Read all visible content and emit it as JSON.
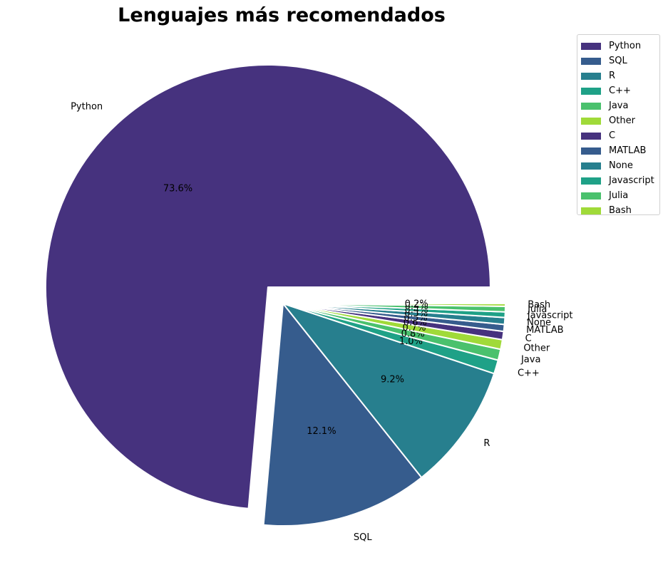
{
  "chart_data": {
    "type": "pie",
    "title": "Lenguajes más recomendados",
    "categories": [
      "Python",
      "SQL",
      "R",
      "C++",
      "Java",
      "Other",
      "C",
      "MATLAB",
      "None",
      "Javascript",
      "Julia",
      "Bash"
    ],
    "values": [
      73.6,
      12.1,
      9.2,
      1.0,
      0.8,
      0.7,
      0.6,
      0.5,
      0.5,
      0.4,
      0.4,
      0.2
    ],
    "pct_labels": [
      "73.6%",
      "12.1%",
      "9.2%",
      "1.0%",
      "0.8%",
      "0.7%",
      "0.6%",
      "0.5%",
      "0.5%",
      "0.4%",
      "0.4%",
      "0.2%"
    ],
    "colors": [
      "#46327e",
      "#365c8d",
      "#277f8e",
      "#1fa187",
      "#4ac16d",
      "#a0da39",
      "#46327e",
      "#365c8d",
      "#277f8e",
      "#1fa187",
      "#4ac16d",
      "#a0da39"
    ],
    "explode": [
      0.1,
      0,
      0,
      0,
      0,
      0,
      0,
      0,
      0,
      0,
      0,
      0
    ],
    "start_angle": 0,
    "legend": "top-right",
    "wedge_edge_color": "#ffffff"
  }
}
